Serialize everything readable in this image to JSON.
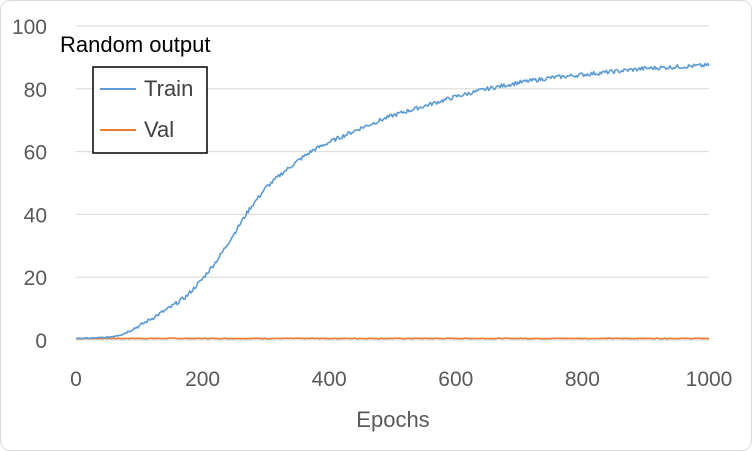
{
  "chart_data": {
    "type": "line",
    "title": "",
    "annotation": "Random output",
    "xlabel": "Epochs",
    "ylabel": "",
    "xlim": [
      0,
      1000
    ],
    "ylim": [
      0,
      100
    ],
    "xticks": [
      0,
      200,
      400,
      600,
      800,
      1000
    ],
    "yticks": [
      0,
      20,
      40,
      60,
      80,
      100
    ],
    "grid": "horizontal",
    "legend_placement": "top-left",
    "series": [
      {
        "name": "Train",
        "color": "#5b9bd5",
        "x": [
          0,
          25,
          50,
          75,
          100,
          125,
          150,
          175,
          200,
          225,
          250,
          275,
          300,
          325,
          350,
          375,
          400,
          450,
          500,
          550,
          600,
          650,
          700,
          750,
          800,
          850,
          900,
          950,
          1000
        ],
        "values": [
          0.5,
          0.6,
          0.8,
          2,
          4.5,
          7.5,
          10.5,
          14,
          19.5,
          26,
          34,
          42,
          48.5,
          53,
          57,
          60.5,
          63,
          67.5,
          71.5,
          74.5,
          77.5,
          80,
          82,
          83.5,
          84.5,
          85.5,
          86.5,
          87,
          87.5
        ]
      },
      {
        "name": "Val",
        "color": "#ed7d31",
        "x": [
          0,
          100,
          200,
          300,
          400,
          500,
          600,
          700,
          800,
          900,
          1000
        ],
        "values": [
          0.5,
          0.5,
          0.5,
          0.5,
          0.5,
          0.5,
          0.5,
          0.5,
          0.5,
          0.5,
          0.5
        ]
      }
    ]
  }
}
